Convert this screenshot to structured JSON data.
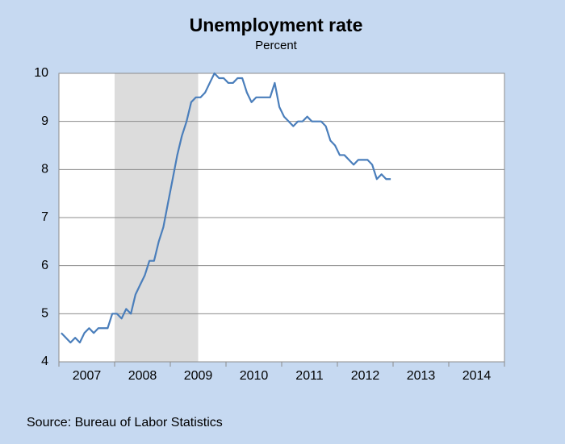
{
  "chart_data": {
    "type": "line",
    "title": "Unemployment rate",
    "subtitle": "Percent",
    "source": "Source: Bureau of Labor Statistics",
    "xlim": [
      2007,
      2015
    ],
    "xticks": [
      {
        "value": 2007.5,
        "label": "2007"
      },
      {
        "value": 2008.5,
        "label": "2008"
      },
      {
        "value": 2009.5,
        "label": "2009"
      },
      {
        "value": 2010.5,
        "label": "2010"
      },
      {
        "value": 2011.5,
        "label": "2011"
      },
      {
        "value": 2012.5,
        "label": "2012"
      },
      {
        "value": 2013.5,
        "label": "2013"
      },
      {
        "value": 2014.5,
        "label": "2014"
      }
    ],
    "ylim": [
      4,
      10
    ],
    "yticks": [
      4,
      5,
      6,
      7,
      8,
      9,
      10
    ],
    "grid": true,
    "shaded_range": [
      2008,
      2009.5
    ],
    "shade_color": "#dcdcdc",
    "series": [
      {
        "color": "#4a7ebb",
        "x": [
          2007.042,
          2007.125,
          2007.208,
          2007.292,
          2007.375,
          2007.458,
          2007.542,
          2007.625,
          2007.708,
          2007.792,
          2007.875,
          2007.958,
          2008.042,
          2008.125,
          2008.208,
          2008.292,
          2008.375,
          2008.458,
          2008.542,
          2008.625,
          2008.708,
          2008.792,
          2008.875,
          2008.958,
          2009.042,
          2009.125,
          2009.208,
          2009.292,
          2009.375,
          2009.458,
          2009.542,
          2009.625,
          2009.708,
          2009.792,
          2009.875,
          2009.958,
          2010.042,
          2010.125,
          2010.208,
          2010.292,
          2010.375,
          2010.458,
          2010.542,
          2010.625,
          2010.708,
          2010.792,
          2010.875,
          2010.958,
          2011.042,
          2011.125,
          2011.208,
          2011.292,
          2011.375,
          2011.458,
          2011.542,
          2011.625,
          2011.708,
          2011.792,
          2011.875,
          2011.958,
          2012.042,
          2012.125,
          2012.208,
          2012.292,
          2012.375,
          2012.458,
          2012.542,
          2012.625,
          2012.708,
          2012.792,
          2012.875,
          2012.958
        ],
        "values": [
          4.6,
          4.5,
          4.4,
          4.5,
          4.4,
          4.6,
          4.7,
          4.6,
          4.7,
          4.7,
          4.7,
          5.0,
          5.0,
          4.9,
          5.1,
          5.0,
          5.4,
          5.6,
          5.8,
          6.1,
          6.1,
          6.5,
          6.8,
          7.3,
          7.8,
          8.3,
          8.7,
          9.0,
          9.4,
          9.5,
          9.5,
          9.6,
          9.8,
          10.0,
          9.9,
          9.9,
          9.8,
          9.8,
          9.9,
          9.9,
          9.6,
          9.4,
          9.5,
          9.5,
          9.5,
          9.5,
          9.8,
          9.3,
          9.1,
          9.0,
          8.9,
          9.0,
          9.0,
          9.1,
          9.0,
          9.0,
          9.0,
          8.9,
          8.6,
          8.5,
          8.3,
          8.3,
          8.2,
          8.1,
          8.2,
          8.2,
          8.2,
          8.1,
          7.8,
          7.9,
          7.8,
          7.8
        ]
      }
    ]
  }
}
